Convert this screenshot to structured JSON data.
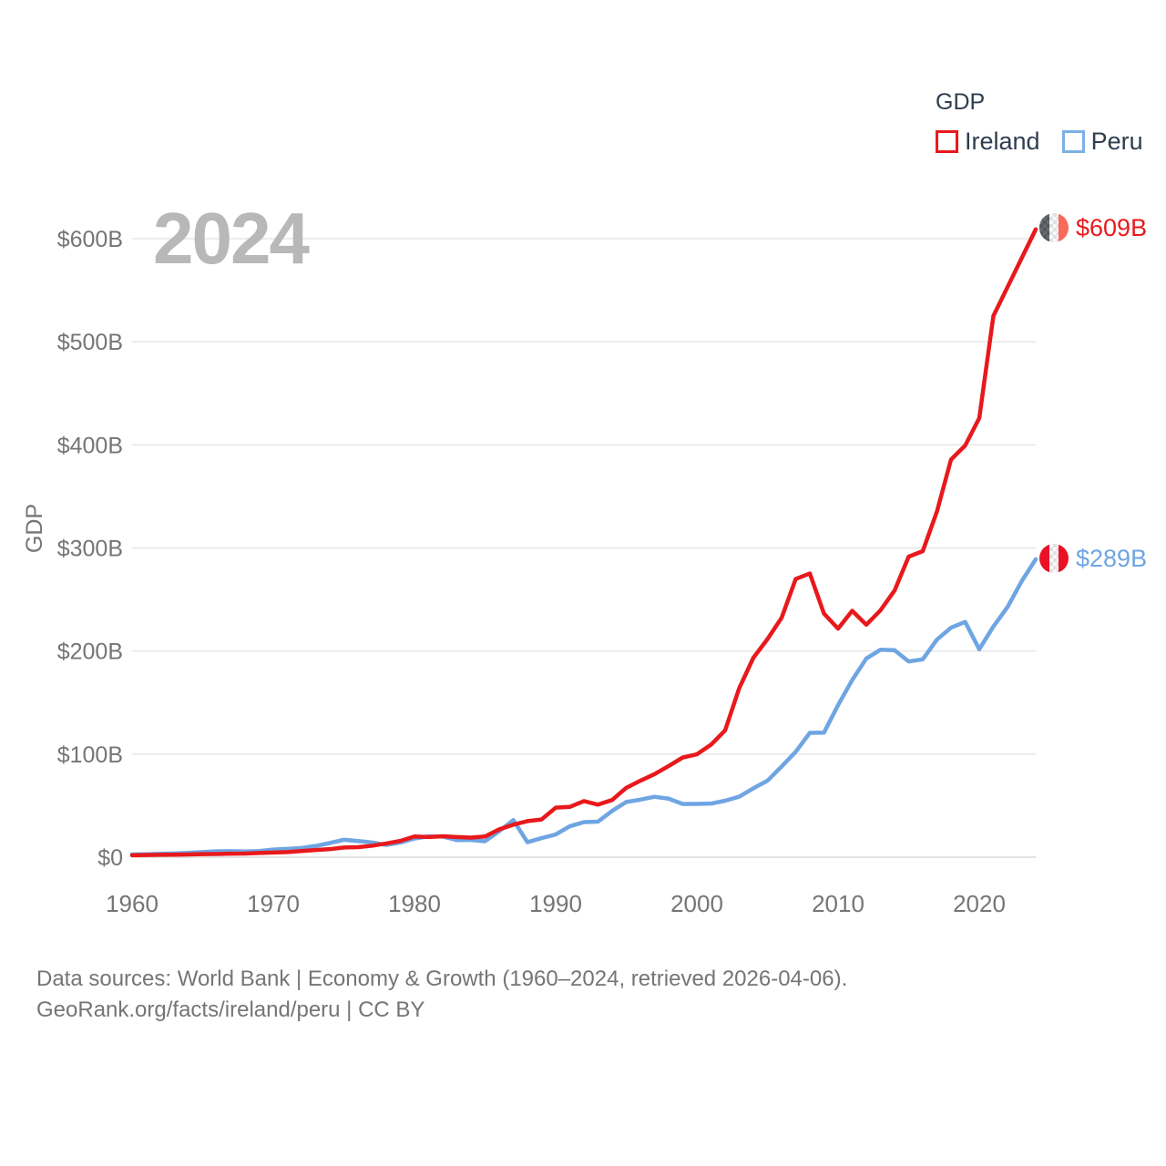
{
  "watermark_year": "2024",
  "legend": {
    "title": "GDP",
    "items": [
      {
        "label": "Ireland",
        "color": "#e8191c"
      },
      {
        "label": "Peru",
        "color": "#6ea5e2"
      }
    ]
  },
  "end_labels": [
    {
      "series": "Ireland",
      "value_label": "$609B",
      "flag": "ireland-flag"
    },
    {
      "series": "Peru",
      "value_label": "$289B",
      "flag": "peru-flag"
    }
  ],
  "axes": {
    "y_title": "GDP",
    "y_ticks": [
      "$0",
      "$100B",
      "$200B",
      "$300B",
      "$400B",
      "$500B",
      "$600B"
    ],
    "x_ticks": [
      "1960",
      "1970",
      "1980",
      "1990",
      "2000",
      "2010",
      "2020"
    ]
  },
  "footer": {
    "line1": "Data sources: World Bank | Economy & Growth (1960–2024, retrieved 2026-04-06).",
    "line2": "GeoRank.org/facts/ireland/peru | CC BY"
  },
  "colors": {
    "ireland_line": "#e8191c",
    "peru_line": "#6ea5e2",
    "grid": "#e6e6e6",
    "baseline": "#dadada",
    "tick_text": "#757575",
    "legend_text": "#2e3d4f",
    "watermark": "#b8b8b8"
  },
  "chart_data": {
    "type": "line",
    "title": "GDP",
    "xlabel": "",
    "ylabel": "GDP",
    "ylim": [
      0,
      600
    ],
    "y_tick_values": [
      0,
      100,
      200,
      300,
      400,
      500,
      600
    ],
    "x_tick_values": [
      1960,
      1970,
      1980,
      1990,
      2000,
      2010,
      2020
    ],
    "grid": "horizontal",
    "legend_position": "top-right",
    "x": [
      1960,
      1961,
      1962,
      1963,
      1964,
      1965,
      1966,
      1967,
      1968,
      1969,
      1970,
      1971,
      1972,
      1973,
      1974,
      1975,
      1976,
      1977,
      1978,
      1979,
      1980,
      1981,
      1982,
      1983,
      1984,
      1985,
      1986,
      1987,
      1988,
      1989,
      1990,
      1991,
      1992,
      1993,
      1994,
      1995,
      1996,
      1997,
      1998,
      1999,
      2000,
      2001,
      2002,
      2003,
      2004,
      2005,
      2006,
      2007,
      2008,
      2009,
      2010,
      2011,
      2012,
      2013,
      2014,
      2015,
      2016,
      2017,
      2018,
      2019,
      2020,
      2021,
      2022,
      2023,
      2024
    ],
    "series": [
      {
        "name": "Ireland",
        "color": "#e8191c",
        "end_label": "$609B",
        "values": [
          1.9,
          2.1,
          2.3,
          2.4,
          2.7,
          3.0,
          3.1,
          3.4,
          3.5,
          4.1,
          4.5,
          5.0,
          6.0,
          7.0,
          7.8,
          9.4,
          9.7,
          11.1,
          13.3,
          15.8,
          20.1,
          19.5,
          20.3,
          19.6,
          19.0,
          20.1,
          27.0,
          31.5,
          35.0,
          36.6,
          48.0,
          48.8,
          54.4,
          51.0,
          55.5,
          67.3,
          74.2,
          80.6,
          88.4,
          96.7,
          99.8,
          109.1,
          123.0,
          164.0,
          193.4,
          211.5,
          232.2,
          269.9,
          275.2,
          236.4,
          221.7,
          239.0,
          225.5,
          239.4,
          258.6,
          291.5,
          296.9,
          335.2,
          385.7,
          399.3,
          425.9,
          525.0,
          553.0,
          581.0,
          609.0
        ]
      },
      {
        "name": "Peru",
        "color": "#6ea5e2",
        "end_label": "$289B",
        "values": [
          2.6,
          2.9,
          3.3,
          3.6,
          4.2,
          5.0,
          5.7,
          5.9,
          5.5,
          6.0,
          7.4,
          8.1,
          9.0,
          10.9,
          13.7,
          16.9,
          15.7,
          14.3,
          11.9,
          14.2,
          18.1,
          20.2,
          20.0,
          16.6,
          16.7,
          15.5,
          25.2,
          36.0,
          14.5,
          18.5,
          22.0,
          30.0,
          34.0,
          34.5,
          44.9,
          53.6,
          55.8,
          58.6,
          56.8,
          51.6,
          51.7,
          52.0,
          54.8,
          58.7,
          66.8,
          74.2,
          87.9,
          102.2,
          120.6,
          120.8,
          147.5,
          171.8,
          192.7,
          201.2,
          200.8,
          189.9,
          191.9,
          211.0,
          222.6,
          228.3,
          201.7,
          223.7,
          242.6,
          267.6,
          289.0
        ]
      }
    ]
  }
}
